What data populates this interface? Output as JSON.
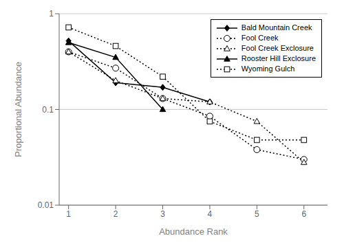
{
  "chart_data": {
    "type": "line",
    "xlabel": "Abundance Rank",
    "ylabel": "Proportional Abundance",
    "xlim": [
      0.8,
      6.5
    ],
    "xticks": [
      1,
      2,
      3,
      4,
      5,
      6
    ],
    "ylim": [
      0.01,
      1.0
    ],
    "yticks": [
      0.01,
      0.1,
      1
    ],
    "log": "y",
    "grid": true,
    "legend": "upper right",
    "series": [
      {
        "name": "Bald Mountain Creek",
        "x": [
          1,
          2,
          3,
          4
        ],
        "values": [
          0.52,
          0.19,
          0.17,
          0.12
        ],
        "line_style": "solid",
        "marker": "diamond",
        "color": "#000000"
      },
      {
        "name": "Fool Creek",
        "x": [
          1,
          2,
          3,
          4,
          5,
          6
        ],
        "values": [
          0.4,
          0.27,
          0.13,
          0.085,
          0.038,
          0.03
        ],
        "line_style": "dotted",
        "marker": "circle_open",
        "color": "#000000"
      },
      {
        "name": "Fool Creek Exclosure",
        "x": [
          1,
          2,
          3,
          4,
          5,
          6
        ],
        "values": [
          0.4,
          0.2,
          0.13,
          0.12,
          0.075,
          0.028
        ],
        "line_style": "dotted",
        "marker": "triangle_open",
        "color": "#000000"
      },
      {
        "name": "Rooster Hill Exclosure",
        "x": [
          1,
          2,
          3
        ],
        "values": [
          0.5,
          0.35,
          0.1
        ],
        "line_style": "solid",
        "marker": "triangle",
        "color": "#000000"
      },
      {
        "name": "Wyoming Gulch",
        "x": [
          1,
          2,
          3,
          4,
          5,
          6
        ],
        "values": [
          0.72,
          0.46,
          0.22,
          0.075,
          0.048,
          0.048
        ],
        "line_style": "dotted",
        "marker": "square_open",
        "color": "#000000"
      }
    ]
  }
}
